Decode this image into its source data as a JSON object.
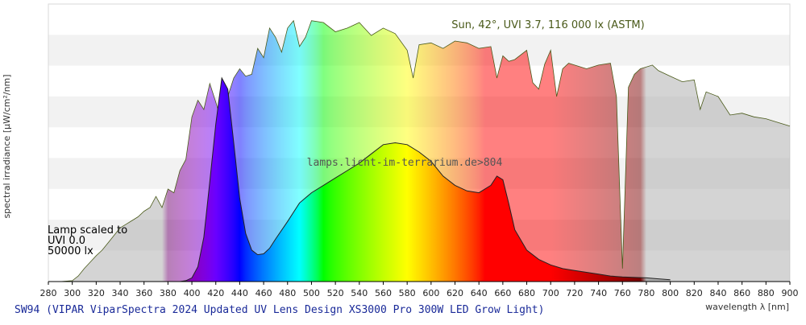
{
  "chart_data": {
    "type": "area",
    "title": "SW94 (VIPAR ViparSpectra 2024 Updated UV Lens Design XS3000 Pro 300W LED Grow Light)",
    "xlabel": "wavelength λ [nm]",
    "ylabel": "spectral irradiance [µW/cm²/nm]",
    "xlim": [
      280,
      900
    ],
    "xticks": [
      280,
      300,
      320,
      340,
      360,
      380,
      400,
      420,
      440,
      460,
      480,
      500,
      520,
      540,
      560,
      580,
      600,
      620,
      640,
      660,
      680,
      700,
      720,
      740,
      760,
      780,
      800,
      820,
      840,
      860,
      880,
      900
    ],
    "grid": "horizontal bands",
    "sun_label": "Sun, 42°, UVI 3.7, 116 000 lx (ASTM)",
    "watermark": "lamps.licht-im-terrarium.de>804",
    "lamp_note": [
      "Lamp scaled to",
      "UVI 0.0",
      "50000 lx"
    ],
    "series": [
      {
        "name": "Sun, 42°, UVI 3.7, 116 000 lx (ASTM)",
        "x": [
          280,
          290,
          300,
          305,
          310,
          315,
          320,
          325,
          330,
          335,
          340,
          345,
          350,
          355,
          360,
          365,
          370,
          375,
          380,
          385,
          390,
          395,
          400,
          405,
          410,
          415,
          420,
          425,
          430,
          435,
          440,
          445,
          450,
          455,
          460,
          465,
          470,
          475,
          480,
          485,
          490,
          495,
          500,
          510,
          520,
          530,
          540,
          550,
          560,
          570,
          580,
          585,
          590,
          600,
          610,
          620,
          630,
          640,
          650,
          655,
          660,
          665,
          670,
          680,
          685,
          690,
          695,
          700,
          705,
          710,
          715,
          720,
          730,
          740,
          750,
          755,
          760,
          765,
          770,
          775,
          780,
          785,
          790,
          800,
          810,
          820,
          825,
          830,
          840,
          850,
          860,
          870,
          880,
          890,
          900
        ],
        "values": [
          0,
          0,
          1,
          6,
          14,
          21,
          28,
          34,
          42,
          50,
          58,
          62,
          66,
          70,
          76,
          80,
          92,
          80,
          100,
          96,
          120,
          132,
          178,
          196,
          186,
          214,
          194,
          172,
          200,
          220,
          230,
          222,
          224,
          252,
          242,
          274,
          264,
          248,
          274,
          282,
          254,
          264,
          282,
          280,
          270,
          274,
          280,
          266,
          274,
          268,
          250,
          220,
          256,
          258,
          252,
          260,
          258,
          252,
          254,
          220,
          244,
          238,
          240,
          250,
          215,
          208,
          235,
          250,
          200,
          230,
          236,
          234,
          230,
          234,
          236,
          200,
          14,
          210,
          224,
          230,
          232,
          234,
          228,
          222,
          216,
          218,
          186,
          205,
          200,
          180,
          182,
          178,
          176,
          172,
          168
        ]
      },
      {
        "name": "SW94",
        "x": [
          280,
          390,
          395,
          400,
          405,
          410,
          415,
          420,
          425,
          430,
          435,
          440,
          445,
          450,
          455,
          460,
          465,
          470,
          480,
          490,
          500,
          510,
          520,
          530,
          540,
          550,
          560,
          570,
          580,
          590,
          600,
          610,
          620,
          630,
          640,
          650,
          655,
          660,
          665,
          670,
          680,
          690,
          700,
          710,
          720,
          730,
          740,
          750,
          760,
          780,
          790,
          800
        ],
        "values": [
          0,
          0,
          1,
          4,
          16,
          48,
          108,
          170,
          220,
          208,
          150,
          90,
          52,
          34,
          29,
          30,
          36,
          46,
          65,
          85,
          96,
          104,
          112,
          120,
          128,
          138,
          148,
          150,
          148,
          140,
          130,
          114,
          104,
          98,
          96,
          104,
          114,
          110,
          84,
          56,
          34,
          24,
          18,
          14,
          12,
          10,
          8,
          6,
          5,
          4,
          3,
          2
        ]
      }
    ]
  }
}
